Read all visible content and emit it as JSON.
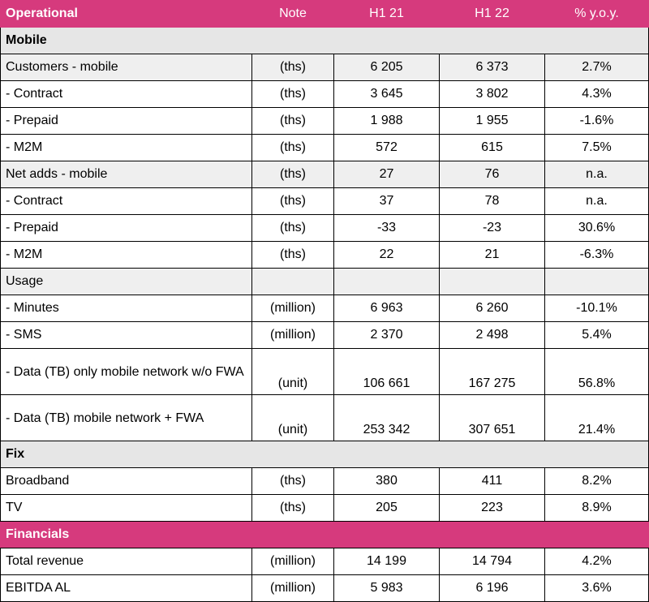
{
  "header": {
    "label": "Operational",
    "note": "Note",
    "h1_21": "H1 21",
    "h1_22": "H1 22",
    "yoy": "% y.o.y."
  },
  "sections": {
    "mobile": "Mobile",
    "fix": "Fix",
    "financials": "Financials"
  },
  "rows": [
    {
      "label": "Customers - mobile",
      "note": "(ths)",
      "h1_21": "6 205",
      "h1_22": "6 373",
      "yoy": "2.7%"
    },
    {
      "label": " - Contract",
      "note": "(ths)",
      "h1_21": "3 645",
      "h1_22": "3 802",
      "yoy": "4.3%"
    },
    {
      "label": " - Prepaid",
      "note": "(ths)",
      "h1_21": "1 988",
      "h1_22": "1 955",
      "yoy": "-1.6%"
    },
    {
      "label": " - M2M",
      "note": "(ths)",
      "h1_21": "572",
      "h1_22": "615",
      "yoy": "7.5%"
    },
    {
      "label": "Net adds - mobile",
      "note": "(ths)",
      "h1_21": "27",
      "h1_22": "76",
      "yoy": "n.a."
    },
    {
      "label": " - Contract",
      "note": "(ths)",
      "h1_21": "37",
      "h1_22": "78",
      "yoy": "n.a."
    },
    {
      "label": " - Prepaid",
      "note": "(ths)",
      "h1_21": "-33",
      "h1_22": "-23",
      "yoy": "30.6%"
    },
    {
      "label": " - M2M",
      "note": "(ths)",
      "h1_21": "22",
      "h1_22": "21",
      "yoy": "-6.3%"
    },
    {
      "label": "Usage",
      "note": "",
      "h1_21": "",
      "h1_22": "",
      "yoy": ""
    },
    {
      "label": " - Minutes",
      "note": "(million)",
      "h1_21": "6 963",
      "h1_22": "6 260",
      "yoy": "-10.1%"
    },
    {
      "label": " - SMS",
      "note": "(million)",
      "h1_21": "2 370",
      "h1_22": "2 498",
      "yoy": "5.4%"
    },
    {
      "label": " - Data (TB) only mobile network w/o FWA",
      "note": "(unit)",
      "h1_21": "106 661",
      "h1_22": "167 275",
      "yoy": "56.8%"
    },
    {
      "label": " - Data (TB) mobile network + FWA",
      "note": "(unit)",
      "h1_21": "253 342",
      "h1_22": "307 651",
      "yoy": "21.4%"
    },
    {
      "label": "Broadband",
      "note": "(ths)",
      "h1_21": "380",
      "h1_22": "411",
      "yoy": "8.2%"
    },
    {
      "label": "TV",
      "note": "(ths)",
      "h1_21": "205",
      "h1_22": "223",
      "yoy": "8.9%"
    },
    {
      "label": "Total revenue",
      "note": "(million)",
      "h1_21": "14 199",
      "h1_22": "14 794",
      "yoy": "4.2%"
    },
    {
      "label": "EBITDA AL",
      "note": "(million)",
      "h1_21": "5 983",
      "h1_22": "6 196",
      "yoy": "3.6%"
    }
  ],
  "colors": {
    "header_bg": "#d63a7d",
    "section_bg": "#e6e6e6",
    "subheader_bg": "#efefef"
  }
}
